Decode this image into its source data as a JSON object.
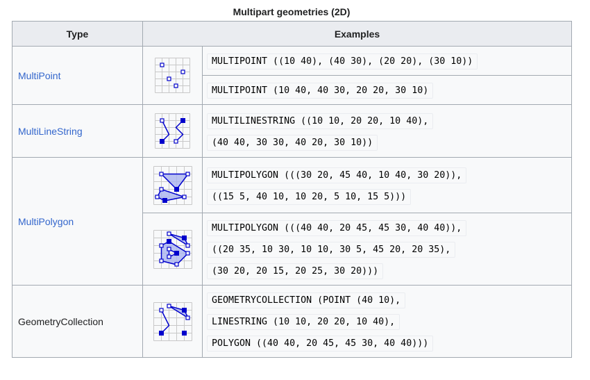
{
  "table": {
    "caption": "Multipart geometries (2D)",
    "headers": {
      "type": "Type",
      "examples": "Examples"
    },
    "rows": [
      {
        "type": "MultiPoint",
        "examples": [
          {
            "code": [
              "MULTIPOINT ((10 40), (40 30), (20 20), (30 10))"
            ]
          },
          {
            "code": [
              "MULTIPOINT (10 40, 40 30, 20 20, 30 10)"
            ]
          }
        ]
      },
      {
        "type": "MultiLineString",
        "examples": [
          {
            "code": [
              "MULTILINESTRING ((10 10, 20 20, 10 40),",
              "(40 40, 30 30, 40 20, 30 10))"
            ]
          }
        ]
      },
      {
        "type": "MultiPolygon",
        "examples": [
          {
            "code": [
              "MULTIPOLYGON (((30 20, 45 40, 10 40, 30 20)),",
              "((15 5, 40 10, 10 20, 5 10, 15 5)))"
            ]
          },
          {
            "code": [
              "MULTIPOLYGON (((40 40, 20 45, 45 30, 40 40)),",
              "((20 35, 10 30, 10 10, 30 5, 45 20, 20 35),",
              "(30 20, 20 15, 20 25, 30 20)))"
            ]
          }
        ]
      },
      {
        "type": "GeometryCollection",
        "examples": [
          {
            "code": [
              "GEOMETRYCOLLECTION (POINT (40 10),",
              "LINESTRING (10 10, 20 20, 10 40),",
              "POLYGON ((40 40, 20 45, 45 30, 40 40)))"
            ]
          }
        ]
      }
    ]
  },
  "colors": {
    "link": "#3366cc",
    "geometry": "#0000cc",
    "fill": "#aab4f0",
    "grid": "#c8c8c8"
  }
}
